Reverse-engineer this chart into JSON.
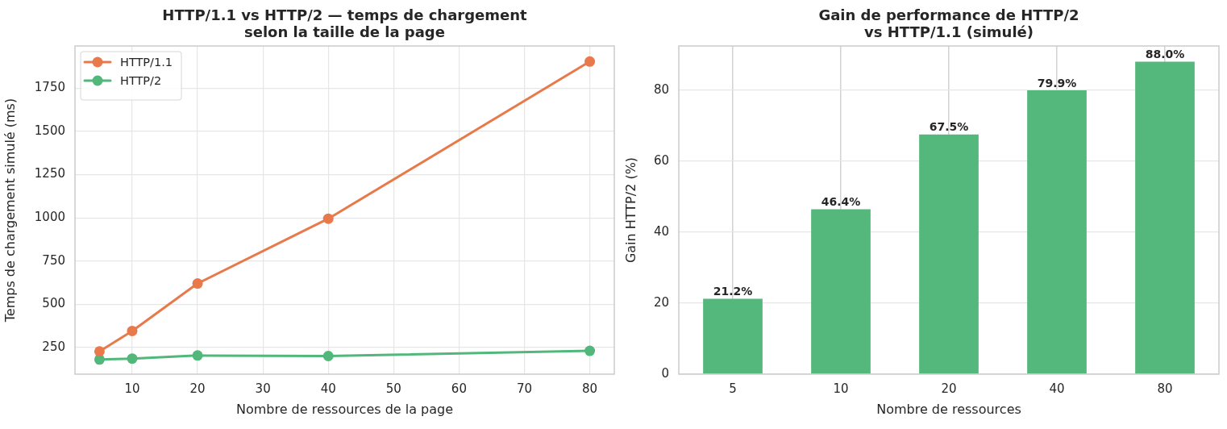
{
  "chart_data": [
    {
      "type": "line",
      "title": "HTTP/1.1 vs HTTP/2 — temps de chargement\nselon la taille de la page",
      "xlabel": "Nombre de ressources de la page",
      "ylabel": "Temps de chargement simulé (ms)",
      "x": [
        5,
        10,
        20,
        40,
        80
      ],
      "series": [
        {
          "name": "HTTP/1.1",
          "color": "#e8794a",
          "values": [
            227,
            345,
            620,
            995,
            1905
          ]
        },
        {
          "name": "HTTP/2",
          "color": "#52b77a",
          "values": [
            180,
            185,
            203,
            200,
            230
          ]
        }
      ],
      "xlim": [
        1.25,
        83.75
      ],
      "xticks": [
        10,
        20,
        30,
        40,
        50,
        60,
        70,
        80
      ],
      "ylim": [
        95,
        1995
      ],
      "yticks": [
        250,
        500,
        750,
        1000,
        1250,
        1500,
        1750
      ],
      "grid": true,
      "legend": "top left",
      "marker": "circle",
      "line_style": "solid"
    },
    {
      "type": "bar",
      "title": "Gain de performance de HTTP/2\nvs HTTP/1.1 (simulé)",
      "xlabel": "Nombre de ressources",
      "ylabel": "Gain HTTP/2 (%)",
      "categories": [
        "5",
        "10",
        "20",
        "40",
        "80"
      ],
      "values": [
        21.2,
        46.4,
        67.5,
        79.9,
        88.0
      ],
      "value_labels": [
        "21.2%",
        "46.4%",
        "67.5%",
        "79.9%",
        "88.0%"
      ],
      "color": "#54b77b",
      "ylim": [
        0,
        92.4
      ],
      "yticks": [
        0,
        20,
        40,
        60,
        80
      ],
      "grid": true
    }
  ]
}
